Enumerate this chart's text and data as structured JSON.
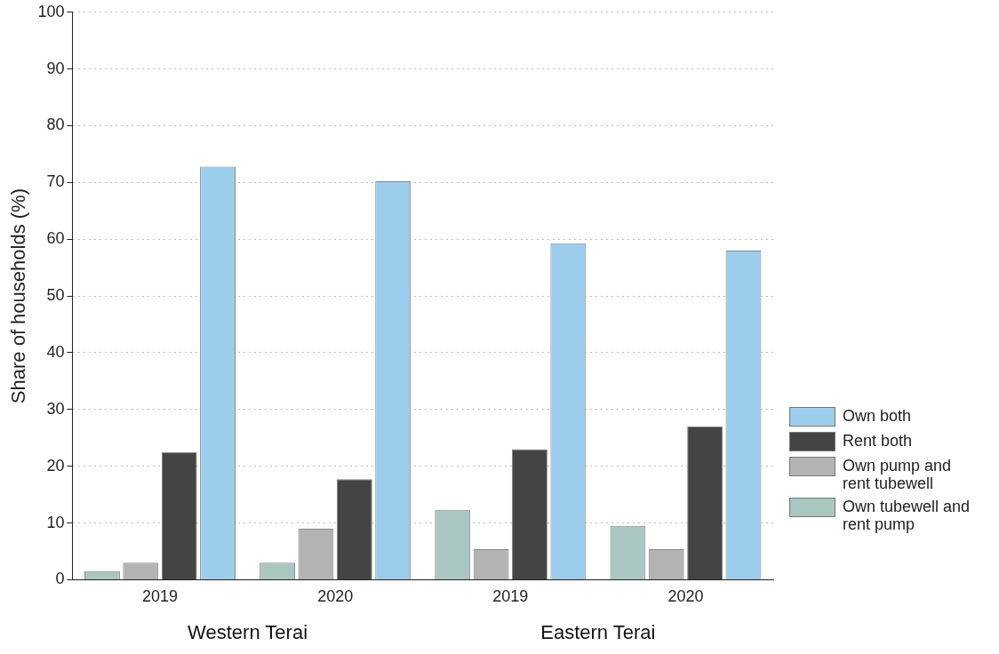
{
  "chart_data": {
    "type": "bar",
    "ylabel": "Share of households (%)",
    "categories": [
      "2019",
      "2020",
      "2019",
      "2020"
    ],
    "series": [
      {
        "name": "Own tubewell and rent pump",
        "color": "#a9c6c0",
        "values": [
          1.5,
          3,
          12.3,
          9.5
        ]
      },
      {
        "name": "Own pump and rent tubewell",
        "color": "#b3b3b3",
        "values": [
          3,
          9,
          5.4,
          5.4
        ]
      },
      {
        "name": "Rent both",
        "color": "#444444",
        "values": [
          22.5,
          17.7,
          23,
          27
        ]
      },
      {
        "name": "Own both",
        "color": "#9dcdec",
        "values": [
          72.8,
          70.2,
          59.3,
          58
        ]
      }
    ],
    "annotations": [
      "Western Terai",
      "Eastern Terai"
    ],
    "ylim": [
      0,
      100
    ],
    "yticks": [
      0,
      10,
      20,
      30,
      40,
      50,
      60,
      70,
      80,
      90,
      100
    ],
    "grid": "y",
    "legend": "right"
  }
}
